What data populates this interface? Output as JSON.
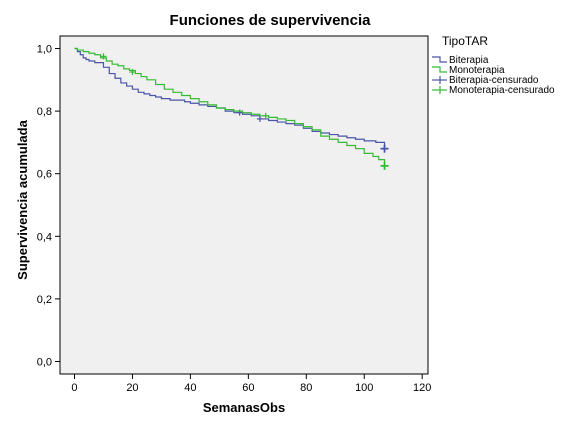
{
  "chart_data": {
    "type": "line",
    "title": "Funciones de supervivencia",
    "xlabel": "SemanasObs",
    "ylabel": "Supervivencia acumulada",
    "xlim": [
      -5,
      122
    ],
    "ylim": [
      -0.04,
      1.04
    ],
    "x_ticks": [
      0,
      20,
      40,
      60,
      80,
      100,
      120
    ],
    "y_ticks": [
      0.0,
      0.2,
      0.4,
      0.6,
      0.8,
      1.0
    ],
    "y_tick_labels": [
      "0,0",
      "0,2",
      "0,4",
      "0,6",
      "0,8",
      "1,0"
    ],
    "step": true,
    "grid": false,
    "plot_background": "#f0f0f0",
    "legend": {
      "title": "TipoTAR",
      "position": "right",
      "entries": [
        "Biterapia",
        "Monoterapia",
        "Biterapia-censurado",
        "Monoterapia-censurado"
      ]
    },
    "series": [
      {
        "name": "Biterapia",
        "color": "#4a55a8",
        "x": [
          0,
          1,
          2,
          3,
          4,
          5,
          7,
          10,
          12,
          14,
          16,
          18,
          20,
          22,
          24,
          26,
          28,
          30,
          33,
          36,
          38,
          40,
          43,
          46,
          49,
          52,
          55,
          58,
          61,
          64,
          67,
          70,
          73,
          76,
          79,
          82,
          85,
          88,
          91,
          94,
          97,
          100,
          104,
          107
        ],
        "y": [
          1.0,
          0.99,
          0.98,
          0.97,
          0.965,
          0.96,
          0.955,
          0.94,
          0.92,
          0.905,
          0.89,
          0.88,
          0.87,
          0.86,
          0.855,
          0.85,
          0.845,
          0.84,
          0.835,
          0.835,
          0.83,
          0.825,
          0.82,
          0.815,
          0.81,
          0.8,
          0.795,
          0.79,
          0.785,
          0.775,
          0.77,
          0.765,
          0.76,
          0.755,
          0.745,
          0.735,
          0.73,
          0.725,
          0.72,
          0.715,
          0.71,
          0.705,
          0.7,
          0.68
        ],
        "censored_x": [
          57,
          64,
          107
        ],
        "censored_y": [
          0.795,
          0.775,
          0.68
        ]
      },
      {
        "name": "Monoterapia",
        "color": "#33bb33",
        "x": [
          0,
          1,
          3,
          5,
          7,
          9,
          11,
          13,
          15,
          17,
          19,
          21,
          23,
          25,
          28,
          31,
          34,
          37,
          40,
          43,
          46,
          49,
          52,
          55,
          58,
          61,
          64,
          67,
          70,
          73,
          76,
          79,
          82,
          85,
          88,
          91,
          94,
          97,
          100,
          103,
          105,
          107
        ],
        "y": [
          1.0,
          0.995,
          0.99,
          0.985,
          0.98,
          0.97,
          0.96,
          0.95,
          0.945,
          0.935,
          0.93,
          0.92,
          0.91,
          0.9,
          0.885,
          0.87,
          0.86,
          0.85,
          0.84,
          0.83,
          0.82,
          0.81,
          0.805,
          0.8,
          0.795,
          0.79,
          0.785,
          0.78,
          0.775,
          0.77,
          0.76,
          0.75,
          0.74,
          0.72,
          0.71,
          0.7,
          0.69,
          0.68,
          0.665,
          0.655,
          0.645,
          0.625
        ],
        "censored_x": [
          10,
          20,
          66,
          107
        ],
        "censored_y": [
          0.975,
          0.925,
          0.785,
          0.625
        ]
      }
    ]
  }
}
